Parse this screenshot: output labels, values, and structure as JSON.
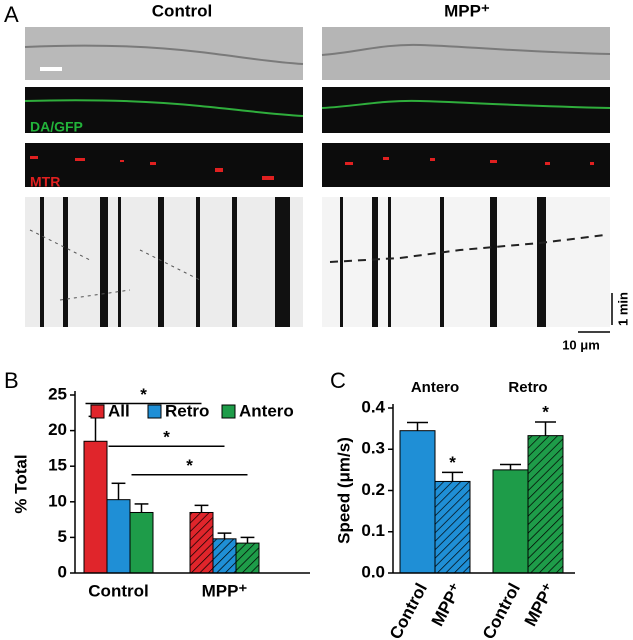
{
  "panel_labels": {
    "a": "A",
    "b": "B",
    "c": "C"
  },
  "panel_a": {
    "columns": [
      "Control",
      "MPP⁺"
    ],
    "channels": [
      "DA/GFP",
      "MTR"
    ],
    "time_scale": "1 min",
    "length_scale": "10 μm"
  },
  "chart_data": [
    {
      "type": "bar",
      "ylabel": "% Total",
      "categories": [
        "Control",
        "MPP⁺"
      ],
      "hatch": [
        false,
        true
      ],
      "series": [
        {
          "name": "All",
          "color": "#e0252b",
          "values": [
            18.5,
            8.5
          ],
          "errors": [
            3.5,
            1.0
          ]
        },
        {
          "name": "Retro",
          "color": "#1f8fd6",
          "values": [
            10.3,
            4.8
          ],
          "errors": [
            2.3,
            0.8
          ]
        },
        {
          "name": "Antero",
          "color": "#1e9c49",
          "values": [
            8.5,
            4.2
          ],
          "errors": [
            1.2,
            0.8
          ]
        }
      ],
      "ylim": [
        0,
        25
      ],
      "yticks": [
        0,
        5,
        10,
        15,
        20,
        25
      ],
      "annotations": [
        {
          "text": "*",
          "y": 23.8
        },
        {
          "text": "*",
          "y": 17.8
        },
        {
          "text": "*",
          "y": 13.8
        }
      ]
    },
    {
      "type": "bar",
      "ylabel": "Speed (μm/s)",
      "groups": [
        "Antero",
        "Retro"
      ],
      "categories": [
        "Control",
        "MPP⁺",
        "Control",
        "MPP⁺"
      ],
      "values": [
        0.345,
        0.222,
        0.25,
        0.333
      ],
      "errors": [
        0.02,
        0.022,
        0.013,
        0.033
      ],
      "colors": [
        "#1f8fd6",
        "#1f8fd6",
        "#1e9c49",
        "#1e9c49"
      ],
      "hatch": [
        false,
        true,
        false,
        true
      ],
      "value_annotations": [
        null,
        "*",
        null,
        "*"
      ],
      "ylim": [
        0,
        0.4
      ],
      "yticks": [
        {
          "value": 0,
          "label": "0.0"
        },
        {
          "value": 0.1,
          "label": "0.1"
        },
        {
          "value": 0.2,
          "label": "0.2"
        },
        {
          "value": 0.3,
          "label": "0.3"
        },
        {
          "value": 0.4,
          "label": "0.4"
        }
      ]
    }
  ]
}
